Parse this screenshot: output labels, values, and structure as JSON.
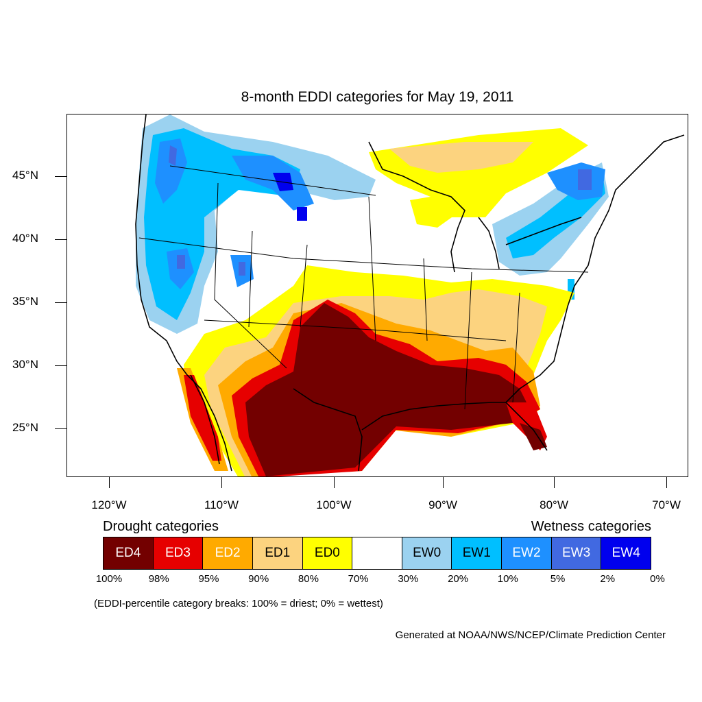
{
  "title": "8-month EDDI categories for May 19, 2011",
  "map": {
    "region": "Contiguous United States and surrounding areas",
    "lat_axis": [
      "45°N",
      "40°N",
      "35°N",
      "30°N",
      "25°N"
    ],
    "lon_axis": [
      "120°W",
      "110°W",
      "100°W",
      "90°W",
      "80°W",
      "70°W"
    ]
  },
  "legend": {
    "drought_heading": "Drought categories",
    "wetness_heading": "Wetness categories",
    "categories": [
      {
        "label": "ED4",
        "color": "#730000",
        "text_color": "#ffffff"
      },
      {
        "label": "ED3",
        "color": "#e60000",
        "text_color": "#ffffff"
      },
      {
        "label": "ED2",
        "color": "#ffaa00",
        "text_color": "#ffffff"
      },
      {
        "label": "ED1",
        "color": "#fcd37f",
        "text_color": "#000000"
      },
      {
        "label": "ED0",
        "color": "#ffff00",
        "text_color": "#000000"
      },
      {
        "label": "",
        "color": "#ffffff",
        "text_color": "#000000"
      },
      {
        "label": "EW0",
        "color": "#9bd2f0",
        "text_color": "#000000"
      },
      {
        "label": "EW1",
        "color": "#00bfff",
        "text_color": "#000000"
      },
      {
        "label": "EW2",
        "color": "#1e90ff",
        "text_color": "#ffffff"
      },
      {
        "label": "EW3",
        "color": "#4169e1",
        "text_color": "#ffffff"
      },
      {
        "label": "EW4",
        "color": "#0000ee",
        "text_color": "#ffffff"
      }
    ],
    "breaks": [
      "100%",
      "98%",
      "95%",
      "90%",
      "80%",
      "70%",
      "30%",
      "20%",
      "10%",
      "5%",
      "2%",
      "0%"
    ]
  },
  "note": "(EDDI-percentile category breaks: 100% = driest; 0% = wettest)",
  "credit": "Generated at NOAA/NWS/NCEP/Climate Prediction Center"
}
